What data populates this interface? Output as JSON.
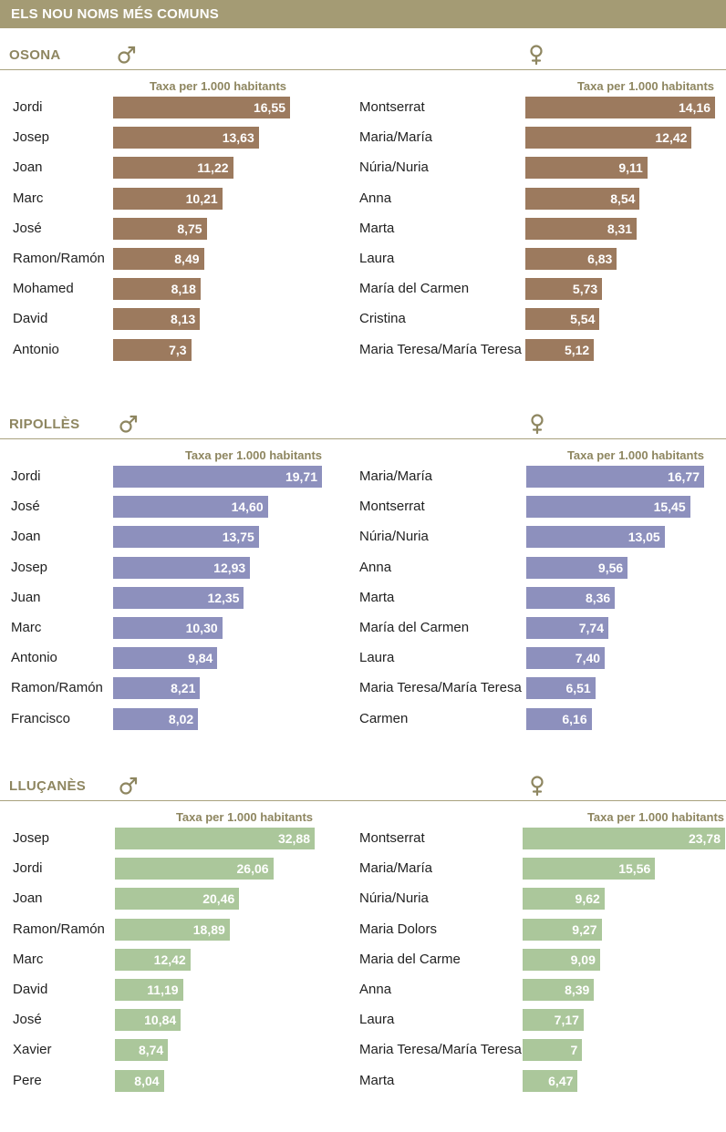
{
  "page_title": "ELS NOU NOMS MÉS COMUNS",
  "colors": {
    "title_bg": "#a49b74",
    "accent": "#8e8660",
    "line": "#a9a27e",
    "osona": "#9c7a5e",
    "ripolles": "#8d90bd",
    "llucanes": "#abc79b"
  },
  "symbols": {
    "male": "male-symbol-icon",
    "female": "female-symbol-icon"
  },
  "chart_data": [
    {
      "type": "bar",
      "orientation": "horizontal",
      "region": "OSONA",
      "gender": "male",
      "xlabel": "Taxa per 1.000 habitants",
      "categories": [
        "Jordi",
        "Josep",
        "Joan",
        "Marc",
        "José",
        "Ramon/Ramón",
        "Mohamed",
        "David",
        "Antonio"
      ],
      "values": [
        16.55,
        13.63,
        11.22,
        10.21,
        8.75,
        8.49,
        8.18,
        8.13,
        7.3
      ],
      "labels": [
        "16,55",
        "13,63",
        "11,22",
        "10,21",
        "8,75",
        "8,49",
        "8,18",
        "8,13",
        "7,3"
      ]
    },
    {
      "type": "bar",
      "orientation": "horizontal",
      "region": "OSONA",
      "gender": "female",
      "xlabel": "Taxa per 1.000 habitants",
      "categories": [
        "Montserrat",
        "Maria/María",
        "Núria/Nuria",
        "Anna",
        "Marta",
        "Laura",
        "María del Carmen",
        "Cristina",
        "Maria Teresa/María Teresa"
      ],
      "values": [
        14.16,
        12.42,
        9.11,
        8.54,
        8.31,
        6.83,
        5.73,
        5.54,
        5.12
      ],
      "labels": [
        "14,16",
        "12,42",
        "9,11",
        "8,54",
        "8,31",
        "6,83",
        "5,73",
        "5,54",
        "5,12"
      ]
    },
    {
      "type": "bar",
      "orientation": "horizontal",
      "region": "RIPOLLÈS",
      "gender": "male",
      "xlabel": "Taxa per 1.000 habitants",
      "categories": [
        "Jordi",
        "José",
        "Joan",
        "Josep",
        "Juan",
        "Marc",
        "Antonio",
        "Ramon/Ramón",
        "Francisco"
      ],
      "values": [
        19.71,
        14.6,
        13.75,
        12.93,
        12.35,
        10.3,
        9.84,
        8.21,
        8.02
      ],
      "labels": [
        "19,71",
        "14,60",
        "13,75",
        "12,93",
        "12,35",
        "10,30",
        "9,84",
        "8,21",
        "8,02"
      ]
    },
    {
      "type": "bar",
      "orientation": "horizontal",
      "region": "RIPOLLÈS",
      "gender": "female",
      "xlabel": "Taxa per 1.000 habitants",
      "categories": [
        "Maria/María",
        "Montserrat",
        "Núria/Nuria",
        "Anna",
        "Marta",
        "María del Carmen",
        "Laura",
        "Maria Teresa/María Teresa",
        "Carmen"
      ],
      "values": [
        16.77,
        15.45,
        13.05,
        9.56,
        8.36,
        7.74,
        7.4,
        6.51,
        6.16
      ],
      "labels": [
        "16,77",
        "15,45",
        "13,05",
        "9,56",
        "8,36",
        "7,74",
        "7,40",
        "6,51",
        "6,16"
      ]
    },
    {
      "type": "bar",
      "orientation": "horizontal",
      "region": "LLUÇANÈS",
      "gender": "male",
      "xlabel": "Taxa per 1.000 habitants",
      "categories": [
        "Josep",
        "Jordi",
        "Joan",
        "Ramon/Ramón",
        "Marc",
        "David",
        "José",
        "Xavier",
        "Pere"
      ],
      "values": [
        32.88,
        26.06,
        20.46,
        18.89,
        12.42,
        11.19,
        10.84,
        8.74,
        8.04
      ],
      "labels": [
        "32,88",
        "26,06",
        "20,46",
        "18,89",
        "12,42",
        "11,19",
        "10,84",
        "8,74",
        "8,04"
      ]
    },
    {
      "type": "bar",
      "orientation": "horizontal",
      "region": "LLUÇANÈS",
      "gender": "female",
      "xlabel": "Taxa per 1.000 habitants",
      "categories": [
        "Montserrat",
        "Maria/María",
        "Núria/Nuria",
        "Maria Dolors",
        "Maria del Carme",
        "Anna",
        "Laura",
        "Maria Teresa/María Teresa",
        "Marta"
      ],
      "values": [
        23.78,
        15.56,
        9.62,
        9.27,
        9.09,
        8.39,
        7.17,
        7,
        6.47
      ],
      "labels": [
        "23,78",
        "15,56",
        "9,62",
        "9,27",
        "9,09",
        "8,39",
        "7,17",
        "7",
        "6,47"
      ]
    }
  ]
}
